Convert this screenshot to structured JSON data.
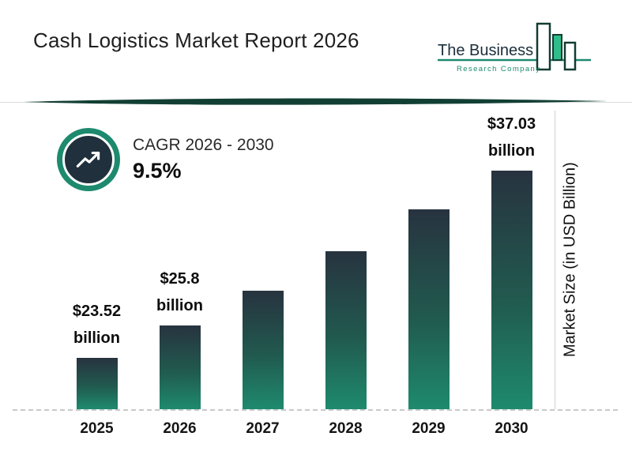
{
  "header": {
    "title": "Cash Logistics Market Report 2026",
    "logo": {
      "line1": "The Business",
      "line2": "Research Company"
    }
  },
  "cagr": {
    "label": "CAGR 2026 - 2030",
    "value": "9.5%"
  },
  "chart_data": {
    "type": "bar",
    "categories": [
      "2025",
      "2026",
      "2027",
      "2028",
      "2029",
      "2030"
    ],
    "values": [
      23.52,
      25.8,
      28.2,
      30.9,
      33.8,
      37.03
    ],
    "bar_labels": [
      "$23.52",
      "$25.8",
      "",
      "",
      "",
      "$37.03"
    ],
    "bar_label_unit": "billion",
    "ylabel": "Market Size (in USD Billion)",
    "ylim": [
      20,
      38
    ],
    "grid": "off",
    "legend": "none",
    "title": "Cash Logistics Market Report 2026"
  },
  "theme": {
    "accent_teal": "#1d8a6e",
    "bar_gradient_top": "#27333f",
    "bar_gradient_bottom": "#1e8a6e",
    "divider_color": "#123f34",
    "badge_inner": "#20303c",
    "logo_green_fill": "#2ebd8b"
  }
}
